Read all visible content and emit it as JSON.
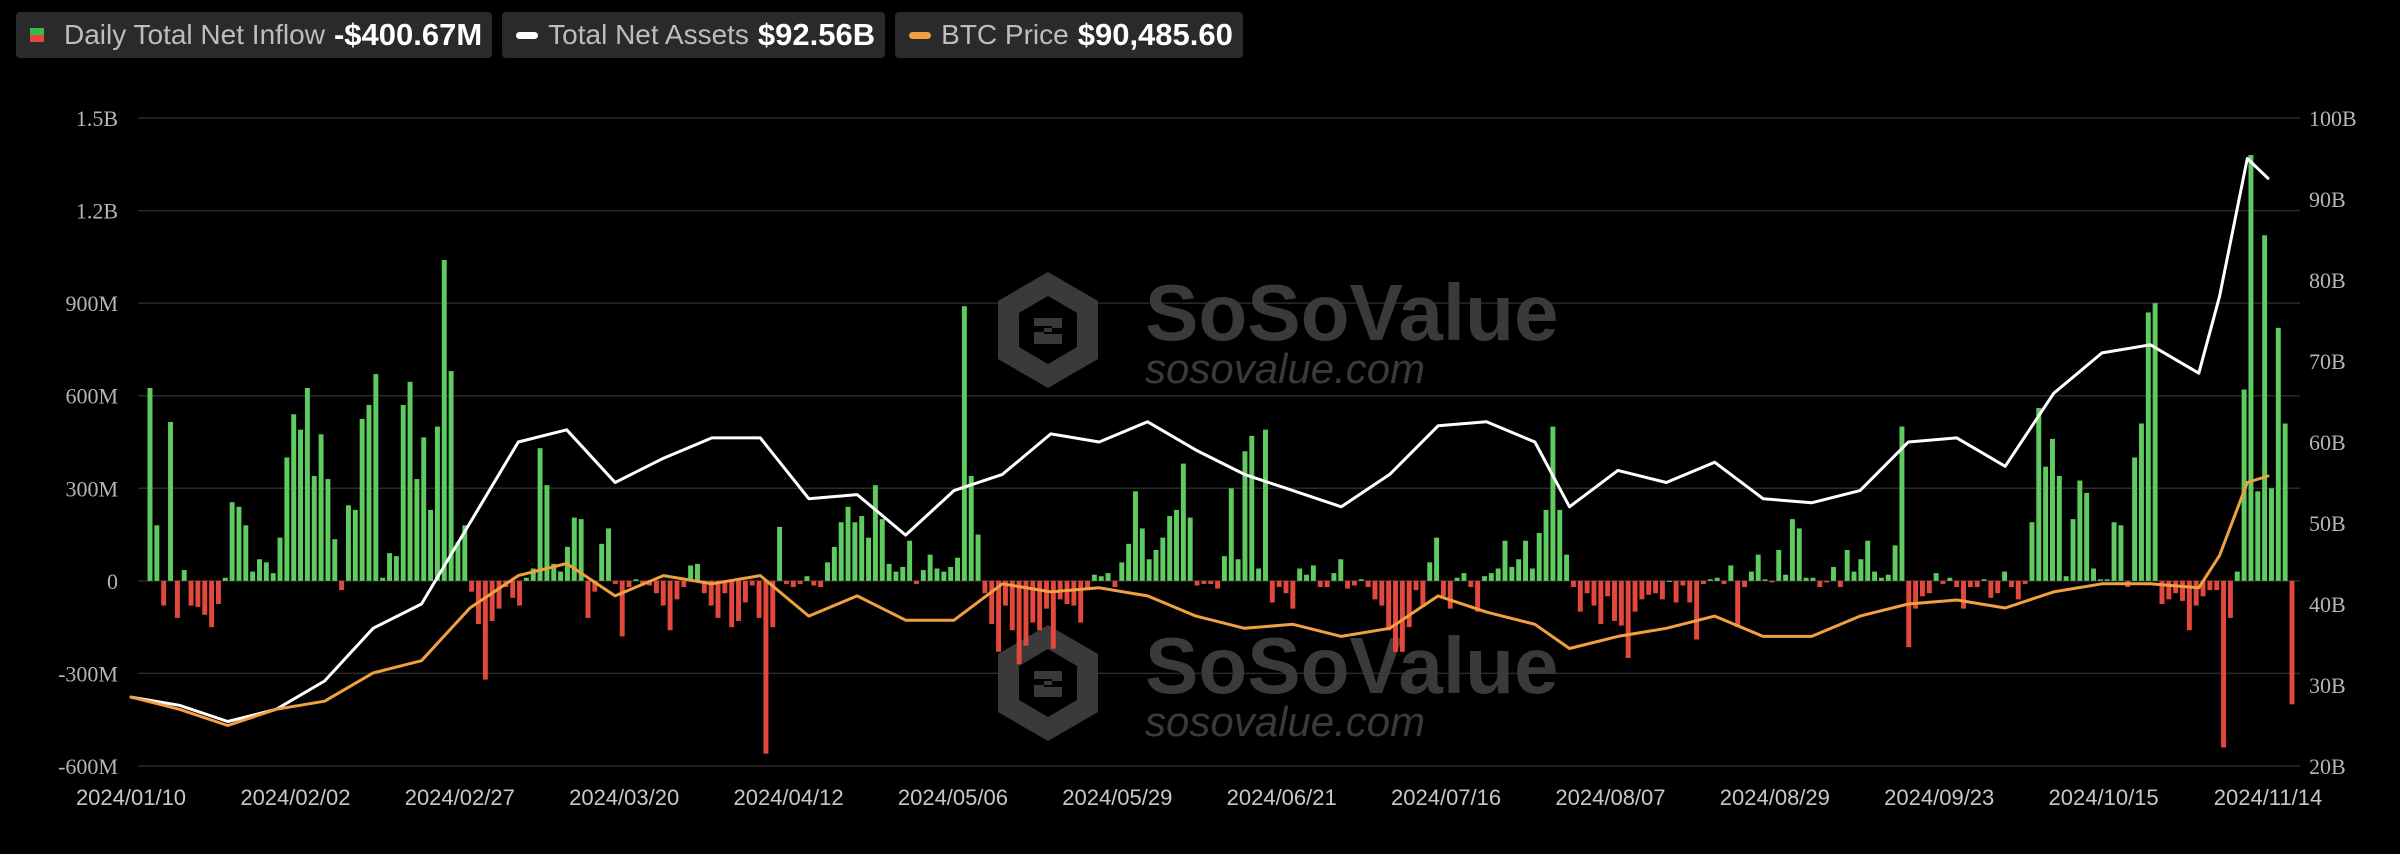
{
  "legend": {
    "inflow_label": "Daily Total Net Inflow",
    "inflow_value": "-$400.67M",
    "assets_label": "Total Net Assets",
    "assets_value": "$92.56B",
    "price_label": "BTC Price",
    "price_value": "$90,485.60"
  },
  "watermark": {
    "brand": "SoSoValue",
    "site": "sosovalue.com",
    "logo_icon": "sosovalue-logo-icon"
  },
  "colors": {
    "positive": "#5fca5f",
    "negative": "#e2483c",
    "assets_line": "#ffffff",
    "price_line": "#f0a040",
    "grid": "#2a2a2a"
  },
  "chart_data": {
    "type": "bar",
    "left_axis": {
      "ticks": [
        "1.5B",
        "1.2B",
        "900M",
        "600M",
        "300M",
        "0",
        "-300M",
        "-600M"
      ],
      "ylim": [
        -600,
        1500
      ],
      "unit": "M"
    },
    "right_axis": {
      "ticks": [
        "100B",
        "90B",
        "80B",
        "70B",
        "60B",
        "50B",
        "40B",
        "30B",
        "20B"
      ],
      "ylim": [
        20,
        100
      ],
      "unit": "B"
    },
    "x_ticks": [
      "2024/01/10",
      "2024/02/02",
      "2024/02/27",
      "2024/03/20",
      "2024/04/12",
      "2024/05/06",
      "2024/05/29",
      "2024/06/21",
      "2024/07/16",
      "2024/08/07",
      "2024/08/29",
      "2024/09/23",
      "2024/10/15",
      "2024/11/14"
    ],
    "grid": true,
    "legend_position": "top-left",
    "series": [
      {
        "name": "Daily Total Net Inflow",
        "kind": "bar",
        "axis": "left",
        "values": [
          625,
          180,
          -80,
          515,
          -120,
          35,
          -80,
          -85,
          -110,
          -150,
          -75,
          10,
          255,
          240,
          180,
          30,
          70,
          60,
          25,
          140,
          400,
          540,
          490,
          625,
          340,
          475,
          330,
          135,
          -30,
          245,
          230,
          525,
          570,
          670,
          10,
          90,
          80,
          570,
          645,
          330,
          465,
          230,
          500,
          1040,
          680,
          125,
          180,
          -35,
          -140,
          -320,
          -130,
          -90,
          -20,
          -55,
          -80,
          10,
          40,
          430,
          310,
          55,
          30,
          110,
          205,
          200,
          -120,
          -35,
          120,
          170,
          -10,
          -180,
          -20,
          5,
          -10,
          -15,
          -40,
          -80,
          -160,
          -60,
          -20,
          50,
          55,
          -40,
          -80,
          -120,
          -40,
          -150,
          -130,
          -70,
          -15,
          -120,
          -560,
          -150,
          175,
          -10,
          -20,
          -10,
          15,
          -15,
          -20,
          60,
          110,
          190,
          240,
          190,
          210,
          140,
          310,
          200,
          55,
          30,
          45,
          130,
          -10,
          35,
          85,
          40,
          30,
          45,
          75,
          890,
          340,
          150,
          -40,
          -140,
          -230,
          -80,
          -160,
          -270,
          -210,
          -135,
          -160,
          -90,
          -220,
          -60,
          -75,
          -80,
          -135,
          -30,
          20,
          15,
          25,
          -20,
          60,
          120,
          290,
          170,
          70,
          100,
          140,
          210,
          230,
          380,
          205,
          -15,
          -10,
          -10,
          -25,
          80,
          300,
          70,
          420,
          470,
          40,
          490,
          -70,
          -20,
          -40,
          -90,
          40,
          20,
          50,
          -20,
          -20,
          25,
          70,
          -25,
          -15,
          5,
          -20,
          -60,
          -80,
          -160,
          -230,
          -230,
          -150,
          -30,
          -85,
          60,
          140,
          -50,
          -90,
          10,
          25,
          -20,
          -100,
          15,
          25,
          40,
          130,
          45,
          70,
          130,
          40,
          155,
          230,
          500,
          230,
          85,
          -20,
          -100,
          -40,
          -80,
          -140,
          -50,
          -130,
          -145,
          -250,
          -100,
          -60,
          -45,
          -40,
          -60,
          0,
          -70,
          -15,
          -70,
          -190,
          -10,
          5,
          10,
          -10,
          50,
          -150,
          -20,
          30,
          85,
          5,
          -5,
          100,
          20,
          200,
          170,
          10,
          10,
          -20,
          -5,
          45,
          -20,
          100,
          30,
          70,
          130,
          30,
          10,
          20,
          115,
          500,
          -215,
          -90,
          -50,
          -40,
          25,
          -10,
          10,
          -20,
          -90,
          -20,
          -20,
          5,
          -55,
          -40,
          30,
          -20,
          -60,
          -10,
          190,
          560,
          370,
          460,
          340,
          15,
          200,
          325,
          285,
          40,
          5,
          5,
          190,
          180,
          -20,
          400,
          510,
          870,
          900,
          -75,
          -60,
          -40,
          -65,
          -160,
          -80,
          -50,
          -30,
          -30,
          -540,
          -120,
          30,
          620,
          1380,
          290,
          1120,
          300,
          820,
          510,
          -400
        ]
      },
      {
        "name": "Total Net Assets",
        "kind": "line",
        "axis": "right",
        "x": [
          "2024/01/10",
          "2024/01/17",
          "2024/01/24",
          "2024/01/31",
          "2024/02/07",
          "2024/02/14",
          "2024/02/21",
          "2024/02/28",
          "2024/03/06",
          "2024/03/13",
          "2024/03/20",
          "2024/03/27",
          "2024/04/03",
          "2024/04/10",
          "2024/04/17",
          "2024/04/24",
          "2024/05/01",
          "2024/05/08",
          "2024/05/15",
          "2024/05/22",
          "2024/05/29",
          "2024/06/05",
          "2024/06/12",
          "2024/06/19",
          "2024/06/26",
          "2024/07/03",
          "2024/07/10",
          "2024/07/17",
          "2024/07/24",
          "2024/07/31",
          "2024/08/05",
          "2024/08/12",
          "2024/08/19",
          "2024/08/26",
          "2024/09/02",
          "2024/09/09",
          "2024/09/16",
          "2024/09/23",
          "2024/09/30",
          "2024/10/07",
          "2024/10/14",
          "2024/10/21",
          "2024/10/28",
          "2024/11/04",
          "2024/11/07",
          "2024/11/11",
          "2024/11/14"
        ],
        "values": [
          28.5,
          27.5,
          25.5,
          27.0,
          30.5,
          37.0,
          40.0,
          50.0,
          60.0,
          61.5,
          55.0,
          58.0,
          60.5,
          60.5,
          53.0,
          53.5,
          48.5,
          54.0,
          56.0,
          61.0,
          60.0,
          62.5,
          59.0,
          56.0,
          54.0,
          52.0,
          56.0,
          62.0,
          62.5,
          60.0,
          52.0,
          56.5,
          55.0,
          57.5,
          53.0,
          52.5,
          54.0,
          60.0,
          60.5,
          57.0,
          66.0,
          71.0,
          72.0,
          68.5,
          78.0,
          95.0,
          92.56
        ]
      },
      {
        "name": "BTC Price",
        "kind": "line",
        "axis": "right-scaled",
        "x": [
          "2024/01/10",
          "2024/01/17",
          "2024/01/24",
          "2024/01/31",
          "2024/02/07",
          "2024/02/14",
          "2024/02/21",
          "2024/02/28",
          "2024/03/06",
          "2024/03/13",
          "2024/03/20",
          "2024/03/27",
          "2024/04/03",
          "2024/04/10",
          "2024/04/17",
          "2024/04/24",
          "2024/05/01",
          "2024/05/08",
          "2024/05/15",
          "2024/05/22",
          "2024/05/29",
          "2024/06/05",
          "2024/06/12",
          "2024/06/19",
          "2024/06/26",
          "2024/07/03",
          "2024/07/10",
          "2024/07/17",
          "2024/07/24",
          "2024/07/31",
          "2024/08/05",
          "2024/08/12",
          "2024/08/19",
          "2024/08/26",
          "2024/09/02",
          "2024/09/09",
          "2024/09/16",
          "2024/09/23",
          "2024/09/30",
          "2024/10/07",
          "2024/10/14",
          "2024/10/21",
          "2024/10/28",
          "2024/11/04",
          "2024/11/07",
          "2024/11/11",
          "2024/11/14"
        ],
        "values": [
          28.5,
          27.0,
          25.0,
          27.0,
          28.0,
          31.5,
          33.0,
          39.5,
          43.5,
          45.0,
          41.0,
          43.5,
          42.5,
          43.5,
          38.5,
          41.0,
          38.0,
          38.0,
          42.5,
          41.5,
          42.0,
          41.0,
          38.5,
          37.0,
          37.5,
          36.0,
          37.0,
          41.0,
          39.0,
          37.5,
          34.5,
          36.0,
          37.0,
          38.5,
          36.0,
          36.0,
          38.5,
          40.0,
          40.5,
          39.5,
          41.5,
          42.5,
          42.5,
          42.0,
          46.0,
          55.0,
          55.8
        ]
      }
    ]
  }
}
